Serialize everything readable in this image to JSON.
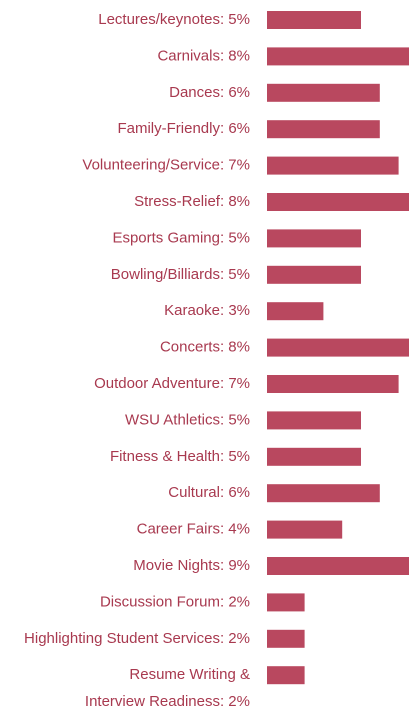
{
  "chart_data": {
    "type": "bar",
    "orientation": "horizontal",
    "color": "#b9485f",
    "categories": [
      "Lectures/keynotes: 5%",
      "Carnivals: 8%",
      "Dances: 6%",
      "Family-Friendly: 6%",
      "Volunteering/Service: 7%",
      "Stress-Relief: 8%",
      "Esports Gaming: 5%",
      "Bowling/Billiards: 5%",
      "Karaoke: 3%",
      "Concerts: 8%",
      "Outdoor Adventure: 7%",
      "WSU Athletics:  5%",
      "Fitness & Health: 5%",
      "Cultural: 6%",
      "Career Fairs: 4%",
      "Movie Nights: 9%",
      "Discussion Forum: 2%",
      "Highlighting Student Services: 2%",
      "Resume Writing &\nInterview Readiness: 2%"
    ],
    "values": [
      5,
      8,
      6,
      6,
      7,
      8,
      5,
      5,
      3,
      8,
      7,
      5,
      5,
      6,
      4,
      9,
      2,
      2,
      2
    ]
  }
}
